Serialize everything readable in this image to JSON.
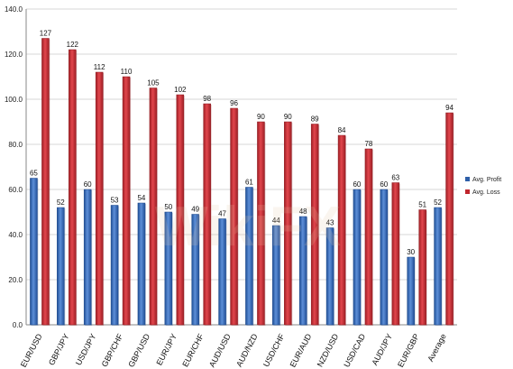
{
  "chart_data": {
    "type": "bar",
    "title": "",
    "xlabel": "",
    "ylabel": "",
    "ylim": [
      0,
      140
    ],
    "y_ticks": [
      "0.0",
      "20.0",
      "40.0",
      "60.0",
      "80.0",
      "100.0",
      "120.0",
      "140.0"
    ],
    "grid": true,
    "legend_position": "right",
    "categories": [
      "EUR/USD",
      "GBP/JPY",
      "USD/JPY",
      "GBP/CHF",
      "GBP/USD",
      "EUR/JPY",
      "EUR/CHF",
      "AUD/USD",
      "AUD/NZD",
      "USD/CHF",
      "EUR/AUD",
      "NZD/USD",
      "USD/CAD",
      "AUD/JPY",
      "EUR/GBP",
      "Average"
    ],
    "series": [
      {
        "name": "Avg. Profit",
        "color": "#2e5fa8",
        "values": [
          65,
          52,
          60,
          53,
          54,
          50,
          49,
          47,
          61,
          44,
          48,
          43,
          60,
          60,
          30,
          52
        ]
      },
      {
        "name": "Avg. Loss",
        "color": "#c0262d",
        "values": [
          127,
          122,
          112,
          110,
          105,
          102,
          98,
          96,
          90,
          90,
          89,
          84,
          78,
          63,
          51,
          94
        ]
      }
    ]
  },
  "watermark": {
    "text": "WikiFX"
  }
}
